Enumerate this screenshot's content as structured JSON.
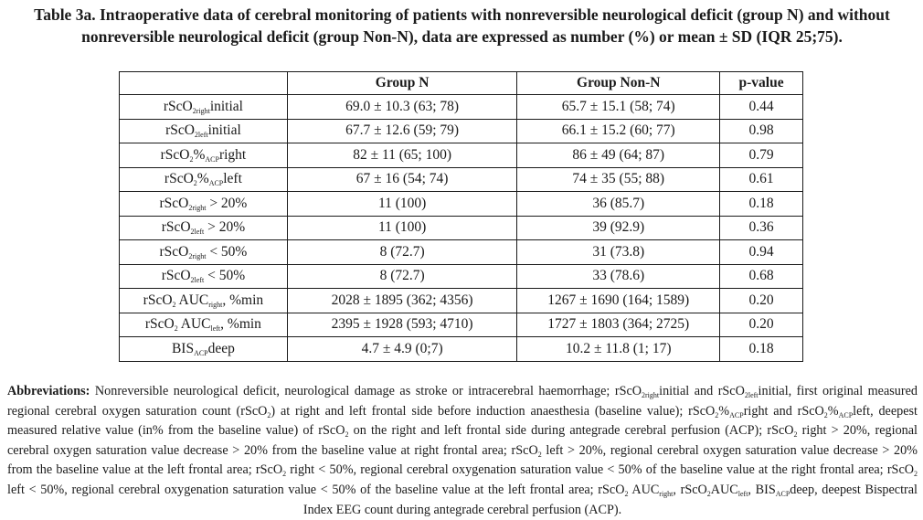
{
  "caption": "Table 3a. Intraoperative data of cerebral monitoring of patients with nonreversible neurological deficit (group N) and without nonreversible neurological deficit (group Non-N), data are expressed as number (%) or mean ± SD (IQR 25;75).",
  "table": {
    "headers": [
      "",
      "Group N",
      "Group Non-N",
      "p-value"
    ],
    "rows": [
      {
        "label": {
          "pre": "rScO",
          "sub": "2right",
          "post": "initial"
        },
        "group_n": "69.0 ± 10.3 (63; 78)",
        "group_non_n": "65.7 ± 15.1 (58; 74)",
        "p": "0.44"
      },
      {
        "label": {
          "pre": "rScO",
          "sub": "2left",
          "post": "initial"
        },
        "group_n": "67.7 ± 12.6 (59; 79)",
        "group_non_n": "66.1 ± 15.2 (60; 77)",
        "p": "0.98"
      },
      {
        "label": {
          "pre": "rScO",
          "sub": "2",
          "mid": "%",
          "sub2": "ACP",
          "post": "right"
        },
        "group_n": "82 ± 11 (65; 100)",
        "group_non_n": "86 ± 49 (64; 87)",
        "p": "0.79"
      },
      {
        "label": {
          "pre": "rScO",
          "sub": "2",
          "mid": "%",
          "sub2": "ACP",
          "post": "left"
        },
        "group_n": "67 ± 16 (54; 74)",
        "group_non_n": "74 ± 35 (55; 88)",
        "p": "0.61"
      },
      {
        "label": {
          "pre": "rScO",
          "sub": "2right",
          "post": " > 20%"
        },
        "group_n": "11 (100)",
        "group_non_n": "36 (85.7)",
        "p": "0.18"
      },
      {
        "label": {
          "pre": "rScO",
          "sub": "2left",
          "post": " > 20%"
        },
        "group_n": "11 (100)",
        "group_non_n": "39 (92.9)",
        "p": "0.36"
      },
      {
        "label": {
          "pre": "rScO",
          "sub": "2right",
          "post": " < 50%"
        },
        "group_n": "8 (72.7)",
        "group_non_n": "31 (73.8)",
        "p": "0.94"
      },
      {
        "label": {
          "pre": "rScO",
          "sub": "2left",
          "post": " < 50%"
        },
        "group_n": "8 (72.7)",
        "group_non_n": "33 (78.6)",
        "p": "0.68"
      },
      {
        "label": {
          "pre": "rScO",
          "sub": "2",
          "mid": " AUC",
          "sub2": "right",
          "post": ", %min"
        },
        "group_n": "2028 ± 1895 (362; 4356)",
        "group_non_n": "1267 ± 1690 (164; 1589)",
        "p": "0.20"
      },
      {
        "label": {
          "pre": "rScO",
          "sub": "2",
          "mid": " AUC",
          "sub2": "left",
          "post": ", %min"
        },
        "group_n": "2395 ± 1928 (593; 4710)",
        "group_non_n": "1727 ± 1803 (364; 2725)",
        "p": "0.20"
      },
      {
        "label": {
          "pre": "BIS",
          "sub": "ACP",
          "post": "deep"
        },
        "group_n": "4.7 ± 4.9 (0;7)",
        "group_non_n": "10.2 ± 11.8 (1; 17)",
        "p": "0.18"
      }
    ]
  },
  "abbreviations": {
    "heading": "Abbreviations:",
    "segments": [
      {
        "t": " Nonreversible neurological deficit, neurological damage as stroke or intracerebral haemorrhage; rScO"
      },
      {
        "s": "2right"
      },
      {
        "t": "initial and rScO"
      },
      {
        "s": "2left"
      },
      {
        "t": "initial, first original measured regional cerebral oxygen saturation count (rScO"
      },
      {
        "s": "2"
      },
      {
        "t": ") at right and left frontal side before induction anaesthesia (baseline value); rScO"
      },
      {
        "s": "2"
      },
      {
        "t": "%"
      },
      {
        "s": "ACP"
      },
      {
        "t": "right and rScO"
      },
      {
        "s": "2"
      },
      {
        "t": "%"
      },
      {
        "s": "ACP"
      },
      {
        "t": "left, deepest measured relative value (in% from the baseline value) of rScO"
      },
      {
        "s": "2"
      },
      {
        "t": " on the right and left frontal side during antegrade cerebral perfusion (ACP); rScO"
      },
      {
        "s": "2"
      },
      {
        "t": " right > 20%, regional cerebral oxygen saturation value decrease > 20% from the baseline value at right frontal area; rScO"
      },
      {
        "s": "2"
      },
      {
        "t": " left > 20%, regional cerebral oxygen saturation value decrease > 20% from the baseline value at the left frontal area; rScO"
      },
      {
        "s": "2"
      },
      {
        "t": " right < 50%, regional cerebral oxygenation saturation value < 50% of the baseline value at the right frontal area; rScO"
      },
      {
        "s": "2"
      },
      {
        "t": " left < 50%, regional cerebral oxygenation saturation value < 50% of the baseline value at the left frontal area; rScO"
      },
      {
        "s": "2"
      },
      {
        "t": " AUC"
      },
      {
        "s": "right"
      },
      {
        "t": ", rScO"
      },
      {
        "s": "2"
      },
      {
        "t": "AUC"
      },
      {
        "s": "left"
      },
      {
        "t": ", BIS"
      },
      {
        "s": "ACP"
      },
      {
        "t": "deep, deepest Bispectral Index EEG count during antegrade cerebral perfusion (ACP)."
      }
    ]
  }
}
